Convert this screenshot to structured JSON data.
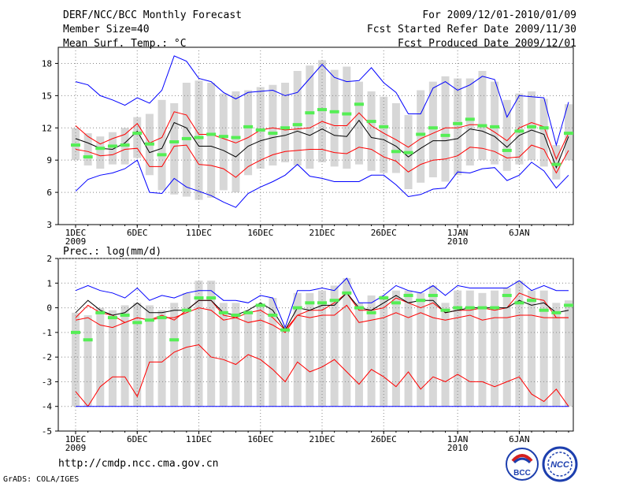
{
  "header": {
    "title": "DERF/NCC/BCC Monthly Forecast",
    "member_size": "Member Size=40",
    "variable": "Mean Surf. Temp.: °C",
    "period": "For 2009/12/01-2010/01/09",
    "fcst_started": "Fcst Started Refer Date 2009/11/30",
    "fcst_produced": "Fcst Produced Date 2009/12/01"
  },
  "footer": {
    "url": "http://cmdp.ncc.cma.gov.cn",
    "grads": "GrADS: COLA/IGES",
    "logo_bcc": "BCC",
    "logo_ncc": "NCC"
  },
  "colors": {
    "max_min": "#0000ff",
    "p10_p90": "#ff0000",
    "mean": "#000000",
    "obs_bar": "#d7d7d7",
    "median": "#55ee55",
    "grid": "#888888"
  },
  "chart_data": [
    {
      "type": "line",
      "title": "Mean Surf. Temp.: °C",
      "days": 40,
      "ylim": [
        3,
        19.5
      ],
      "yticks": [
        3,
        6,
        9,
        12,
        15,
        18
      ],
      "x_tick_labels": [
        "1DEC\n2009",
        "6DEC",
        "11DEC",
        "16DEC",
        "21DEC",
        "26DEC",
        "1JAN\n2010",
        "6JAN"
      ],
      "x_tick_days": [
        1,
        6,
        11,
        16,
        21,
        26,
        32,
        37
      ],
      "series": [
        {
          "name": "max",
          "color": "#0000ff",
          "values": [
            16.3,
            16.0,
            15.0,
            14.6,
            14.1,
            14.8,
            14.3,
            15.5,
            18.7,
            18.2,
            16.6,
            16.3,
            15.3,
            14.7,
            15.3,
            15.4,
            15.5,
            15.0,
            15.3,
            16.6,
            17.9,
            16.7,
            16.3,
            16.4,
            17.6,
            16.2,
            15.3,
            13.3,
            13.3,
            15.7,
            16.3,
            15.5,
            16.0,
            16.8,
            16.5,
            13.0,
            15.0,
            14.9,
            14.8,
            10.4,
            14.4
          ]
        },
        {
          "name": "p90",
          "color": "#ff0000",
          "values": [
            12.2,
            11.2,
            10.5,
            11.0,
            11.4,
            12.4,
            10.6,
            11.1,
            13.5,
            13.2,
            11.4,
            11.4,
            11.0,
            10.6,
            11.1,
            11.8,
            12.0,
            11.8,
            11.9,
            12.0,
            12.6,
            12.2,
            12.2,
            13.4,
            12.2,
            11.5,
            10.9,
            10.2,
            11.0,
            11.5,
            12.0,
            12.0,
            12.3,
            12.3,
            11.6,
            10.8,
            12.0,
            12.5,
            12.1,
            9.1,
            11.5
          ]
        },
        {
          "name": "mean",
          "color": "#000000",
          "values": [
            11.0,
            10.6,
            10.1,
            10.0,
            10.6,
            11.7,
            9.7,
            10.1,
            12.5,
            12.0,
            10.3,
            10.3,
            9.9,
            9.3,
            10.3,
            10.8,
            11.1,
            11.3,
            11.7,
            11.3,
            11.9,
            11.3,
            11.2,
            12.7,
            11.1,
            10.9,
            10.3,
            9.3,
            10.1,
            10.8,
            10.8,
            11.0,
            11.9,
            11.7,
            11.2,
            10.2,
            11.3,
            11.8,
            11.4,
            8.3,
            11.2
          ]
        },
        {
          "name": "p10",
          "color": "#ff0000",
          "values": [
            10.0,
            9.8,
            9.4,
            9.5,
            10.0,
            10.1,
            8.4,
            8.4,
            10.3,
            10.4,
            8.6,
            8.5,
            8.2,
            7.4,
            8.4,
            9.0,
            9.5,
            9.8,
            9.9,
            10.0,
            10.0,
            9.7,
            9.6,
            10.2,
            10.0,
            9.3,
            8.9,
            7.9,
            8.6,
            9.0,
            9.1,
            9.4,
            10.2,
            10.1,
            9.8,
            9.2,
            9.3,
            10.4,
            10.0,
            7.8,
            9.9
          ]
        },
        {
          "name": "min",
          "color": "#0000ff",
          "values": [
            6.1,
            7.2,
            7.6,
            7.8,
            8.2,
            9.0,
            6.0,
            5.9,
            7.3,
            6.5,
            6.1,
            5.7,
            5.1,
            4.6,
            5.9,
            6.5,
            7.0,
            7.6,
            8.6,
            7.5,
            7.3,
            7.0,
            7.0,
            7.0,
            7.6,
            7.6,
            6.7,
            5.6,
            5.8,
            6.3,
            6.4,
            7.9,
            7.8,
            8.2,
            8.3,
            7.1,
            7.6,
            8.8,
            8.0,
            6.4,
            7.6
          ]
        }
      ],
      "observed_range": [
        [
          9.0,
          12.0
        ],
        [
          8.5,
          11.5
        ],
        [
          8.2,
          11.2
        ],
        [
          8.6,
          11.6
        ],
        [
          8.6,
          12.0
        ],
        [
          9.2,
          13.0
        ],
        [
          7.6,
          13.3
        ],
        [
          6.2,
          14.6
        ],
        [
          5.8,
          14.3
        ],
        [
          5.6,
          16.2
        ],
        [
          5.3,
          16.4
        ],
        [
          5.5,
          16.2
        ],
        [
          6.2,
          15.2
        ],
        [
          6.0,
          15.4
        ],
        [
          7.6,
          15.5
        ],
        [
          8.2,
          15.8
        ],
        [
          8.5,
          16.0
        ],
        [
          8.8,
          16.2
        ],
        [
          8.5,
          17.3
        ],
        [
          8.2,
          17.8
        ],
        [
          8.8,
          18.3
        ],
        [
          8.4,
          17.4
        ],
        [
          8.2,
          17.7
        ],
        [
          8.6,
          16.3
        ],
        [
          8.0,
          15.4
        ],
        [
          7.8,
          14.9
        ],
        [
          7.8,
          14.3
        ],
        [
          6.3,
          13.2
        ],
        [
          6.9,
          15.5
        ],
        [
          7.4,
          16.3
        ],
        [
          7.0,
          16.8
        ],
        [
          7.6,
          16.6
        ],
        [
          8.5,
          16.6
        ],
        [
          9.0,
          17.3
        ],
        [
          8.6,
          16.3
        ],
        [
          8.0,
          14.6
        ],
        [
          8.6,
          15.2
        ],
        [
          9.0,
          15.4
        ],
        [
          8.4,
          14.7
        ],
        [
          7.2,
          10.4
        ],
        [
          9.0,
          14.2
        ]
      ],
      "median_ensemble": [
        10.4,
        9.3,
        10.1,
        10.3,
        10.4,
        11.5,
        10.5,
        9.5,
        10.7,
        11.0,
        11.1,
        11.4,
        11.2,
        11.1,
        12.1,
        11.8,
        11.5,
        12.0,
        12.3,
        13.4,
        13.7,
        13.5,
        13.3,
        14.2,
        12.6,
        12.1,
        9.8,
        9.7,
        11.4,
        12.0,
        11.3,
        12.4,
        12.8,
        12.2,
        12.1,
        9.9,
        11.7,
        12.1,
        12.0,
        8.6,
        11.5
      ]
    },
    {
      "type": "line",
      "title": "Prec.: log(mm/d)",
      "days": 40,
      "ylim": [
        -5,
        2
      ],
      "yticks": [
        -5,
        -4,
        -3,
        -2,
        -1,
        0,
        1,
        2
      ],
      "x_tick_labels": [
        "1DEC\n2009",
        "6DEC",
        "11DEC",
        "16DEC",
        "21DEC",
        "26DEC",
        "1JAN\n2010",
        "6JAN"
      ],
      "x_tick_days": [
        1,
        6,
        11,
        16,
        21,
        26,
        32,
        37
      ],
      "series": [
        {
          "name": "max",
          "color": "#0000ff",
          "values": [
            0.7,
            0.9,
            0.7,
            0.6,
            0.4,
            0.8,
            0.3,
            0.5,
            0.4,
            0.6,
            0.7,
            0.7,
            0.3,
            0.3,
            0.2,
            0.5,
            0.4,
            -0.8,
            0.7,
            0.7,
            0.8,
            0.7,
            1.2,
            0.2,
            0.2,
            0.5,
            0.9,
            0.7,
            0.6,
            0.9,
            0.5,
            0.9,
            0.8,
            0.8,
            0.8,
            0.8,
            1.1,
            0.7,
            0.9,
            0.7,
            0.7
          ]
        },
        {
          "name": "p90",
          "color": "#ff0000",
          "values": [
            -0.4,
            0.1,
            -0.2,
            -0.3,
            -0.6,
            -0.4,
            -0.5,
            -0.3,
            -0.5,
            -0.1,
            0.3,
            0.3,
            -0.3,
            -0.4,
            -0.2,
            -0.1,
            -0.4,
            -0.9,
            -0.3,
            -0.1,
            -0.1,
            0.2,
            0.6,
            -0.1,
            -0.1,
            0.0,
            0.4,
            0.2,
            0.0,
            0.2,
            -0.2,
            -0.1,
            -0.1,
            0.0,
            -0.1,
            0.0,
            0.6,
            0.4,
            0.3,
            -0.4,
            -0.4
          ]
        },
        {
          "name": "mean",
          "color": "#000000",
          "values": [
            -0.2,
            0.3,
            -0.1,
            -0.3,
            -0.2,
            0.2,
            -0.2,
            -0.2,
            -0.1,
            -0.1,
            0.3,
            0.3,
            -0.2,
            -0.3,
            -0.1,
            0.2,
            -0.1,
            -0.9,
            0.0,
            -0.1,
            0.1,
            0.1,
            0.6,
            0.0,
            -0.1,
            0.2,
            0.5,
            0.2,
            0.3,
            0.3,
            -0.2,
            -0.1,
            0.0,
            0.0,
            0.0,
            0.0,
            0.3,
            0.1,
            0.2,
            -0.2,
            -0.1
          ]
        },
        {
          "name": "p10",
          "color": "#ff0000",
          "values": [
            -0.5,
            -0.4,
            -0.7,
            -0.8,
            -0.6,
            -0.4,
            -0.5,
            -0.4,
            -0.4,
            -0.2,
            0.0,
            -0.1,
            -0.5,
            -0.4,
            -0.6,
            -0.5,
            -0.7,
            -1.0,
            -0.3,
            -0.4,
            -0.3,
            -0.3,
            0.1,
            -0.6,
            -0.5,
            -0.4,
            -0.2,
            -0.4,
            -0.2,
            -0.4,
            -0.5,
            -0.4,
            -0.3,
            -0.5,
            -0.4,
            -0.4,
            -0.3,
            -0.3,
            -0.4,
            -0.4,
            -0.4
          ]
        },
        {
          "name": "min",
          "color": "#ff0000",
          "values": [
            -3.4,
            -4.0,
            -3.2,
            -2.8,
            -2.8,
            -3.6,
            -2.2,
            -2.2,
            -1.8,
            -1.6,
            -1.5,
            -2.0,
            -2.1,
            -2.3,
            -1.9,
            -2.1,
            -2.5,
            -3.0,
            -2.2,
            -2.6,
            -2.4,
            -2.1,
            -2.6,
            -3.1,
            -2.5,
            -2.8,
            -3.2,
            -2.6,
            -3.3,
            -2.8,
            -3.0,
            -2.7,
            -3.0,
            -3.0,
            -3.2,
            -3.0,
            -2.8,
            -3.5,
            -3.8,
            -3.3,
            -4.0
          ]
        },
        {
          "name": "floor",
          "color": "#0000ff",
          "values": [
            -4.0,
            -4.0,
            -4.0,
            -4.0,
            -4.0,
            -4.0,
            -4.0,
            -4.0,
            -4.0,
            -4.0,
            -4.0,
            -4.0,
            -4.0,
            -4.0,
            -4.0,
            -4.0,
            -4.0,
            -4.0,
            -4.0,
            -4.0,
            -4.0,
            -4.0,
            -4.0,
            -4.0,
            -4.0,
            -4.0,
            -4.0,
            -4.0,
            -4.0,
            -4.0,
            -4.0,
            -4.0,
            -4.0,
            -4.0,
            -4.0,
            -4.0,
            -4.0,
            -4.0,
            -4.0,
            -4.0,
            -4.0
          ]
        }
      ],
      "observed_range": [
        [
          -4.0,
          -0.2
        ],
        [
          -4.0,
          -0.3
        ],
        [
          -4.0,
          0.0
        ],
        [
          -4.0,
          -0.1
        ],
        [
          -4.0,
          0.1
        ],
        [
          -4.0,
          0.2
        ],
        [
          -4.0,
          0.1
        ],
        [
          -4.0,
          -0.1
        ],
        [
          -4.0,
          0.2
        ],
        [
          -4.0,
          0.6
        ],
        [
          -4.0,
          1.1
        ],
        [
          -4.0,
          1.1
        ],
        [
          -4.0,
          0.2
        ],
        [
          -4.0,
          0.2
        ],
        [
          -4.0,
          -0.1
        ],
        [
          -4.0,
          0.1
        ],
        [
          -4.0,
          0.4
        ],
        [
          -4.0,
          -0.8
        ],
        [
          -4.0,
          0.6
        ],
        [
          -4.0,
          0.6
        ],
        [
          -4.0,
          0.7
        ],
        [
          -4.0,
          0.9
        ],
        [
          -4.0,
          1.2
        ],
        [
          -4.0,
          0.2
        ],
        [
          -4.0,
          0.5
        ],
        [
          -4.0,
          0.5
        ],
        [
          -4.0,
          0.7
        ],
        [
          -4.0,
          0.7
        ],
        [
          -4.0,
          0.6
        ],
        [
          -4.0,
          0.9
        ],
        [
          -4.0,
          0.2
        ],
        [
          -4.0,
          0.7
        ],
        [
          -4.0,
          0.7
        ],
        [
          -4.0,
          0.6
        ],
        [
          -4.0,
          0.7
        ],
        [
          -4.0,
          0.8
        ],
        [
          -4.0,
          1.1
        ],
        [
          -4.0,
          0.7
        ],
        [
          -4.0,
          0.7
        ],
        [
          -4.0,
          0.2
        ],
        [
          -4.0,
          0.3
        ]
      ],
      "median_ensemble": [
        -1.0,
        -1.3,
        -0.2,
        -0.4,
        -0.3,
        -0.6,
        -0.5,
        -0.4,
        -1.3,
        -0.1,
        0.4,
        0.4,
        -0.2,
        -0.3,
        -0.2,
        0.1,
        -0.3,
        -0.9,
        0.0,
        0.2,
        0.2,
        0.3,
        0.6,
        0.0,
        -0.2,
        0.4,
        0.2,
        0.5,
        0.3,
        0.5,
        -0.1,
        0.0,
        0.0,
        0.0,
        0.0,
        0.5,
        0.2,
        0.3,
        -0.1,
        -0.2,
        0.1
      ]
    }
  ]
}
